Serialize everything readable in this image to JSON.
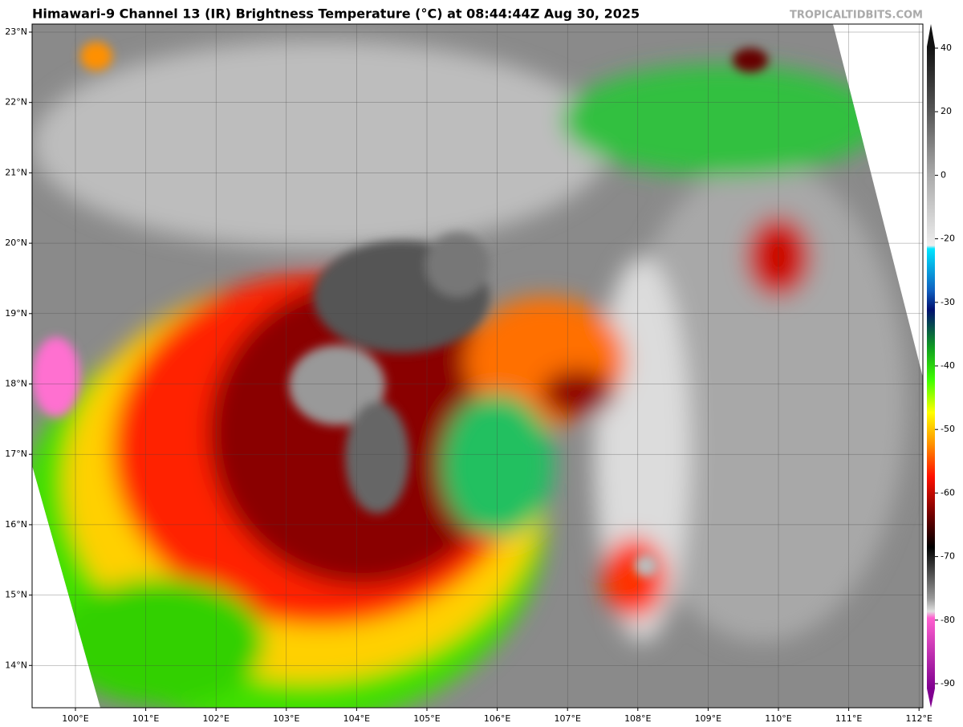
{
  "header": {
    "title": "Himawari-9 Channel 13 (IR) Brightness Temperature (°C) at 08:44:44Z Aug 30, 2025",
    "watermark": "TROPICALTIDBITS.COM"
  },
  "map": {
    "lon_labels": [
      "100°E",
      "101°E",
      "102°E",
      "103°E",
      "104°E",
      "105°E",
      "106°E",
      "107°E",
      "108°E",
      "109°E",
      "110°E",
      "111°E",
      "112°E"
    ],
    "lat_labels": [
      "23°N",
      "22°N",
      "21°N",
      "20°N",
      "19°N",
      "18°N",
      "17°N",
      "16°N",
      "15°N",
      "14°N"
    ]
  },
  "colorbar": {
    "ticks": [
      40,
      20,
      0,
      -20,
      -30,
      -40,
      -50,
      -60,
      -70,
      -80,
      -90
    ]
  }
}
